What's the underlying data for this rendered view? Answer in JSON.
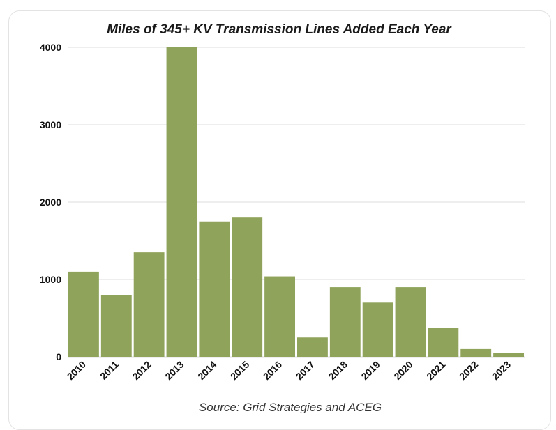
{
  "chart_data": {
    "type": "bar",
    "title": "Miles of 345+ KV Transmission Lines Added Each Year",
    "source": "Source: Grid Strategies and ACEG",
    "xlabel": "",
    "ylabel": "",
    "categories": [
      "2010",
      "2011",
      "2012",
      "2013",
      "2014",
      "2015",
      "2016",
      "2017",
      "2018",
      "2019",
      "2020",
      "2021",
      "2022",
      "2023"
    ],
    "values": [
      1100,
      800,
      1350,
      4000,
      1750,
      1800,
      1040,
      250,
      900,
      700,
      900,
      370,
      100,
      50
    ],
    "ylim": [
      0,
      4000
    ],
    "yticks": [
      "0",
      "1000",
      "2000",
      "3000",
      "4000"
    ],
    "grid": true,
    "bar_color": "#8fa35a",
    "legend": "none"
  }
}
